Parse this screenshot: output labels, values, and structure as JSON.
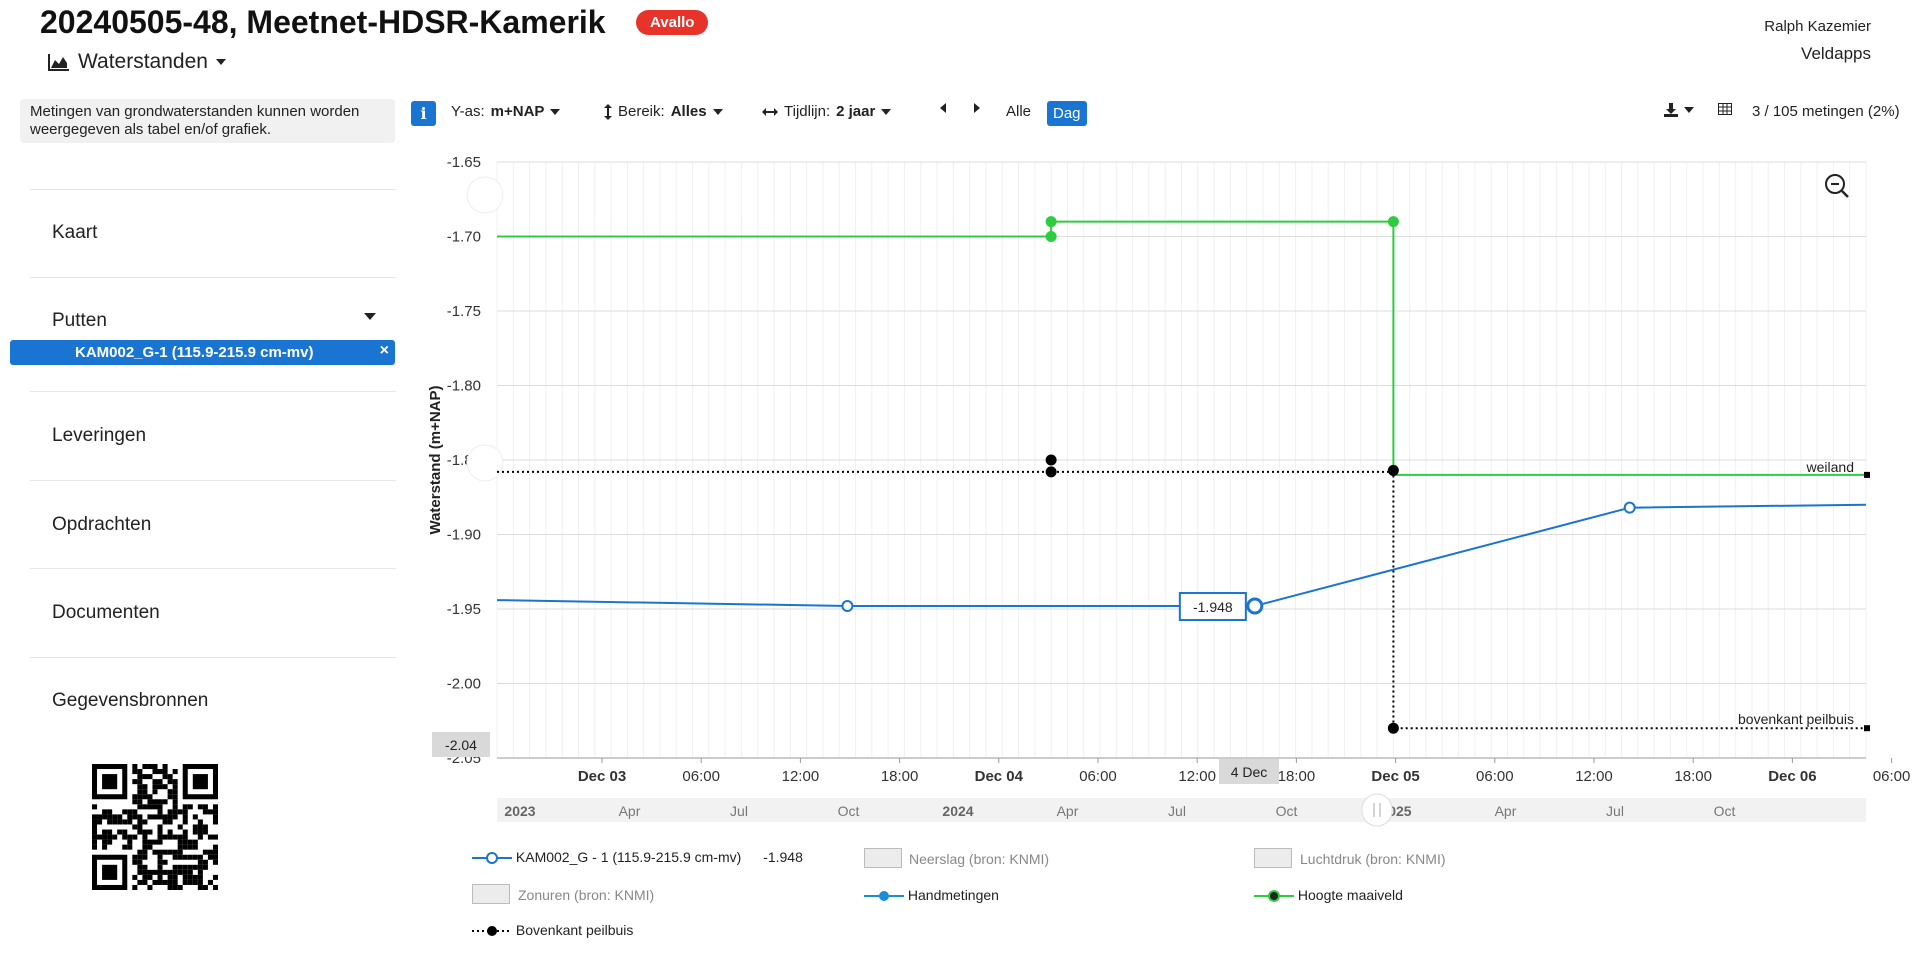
{
  "header": {
    "title": "20240505-48, Meetnet-HDSR-Kamerik",
    "badge": "Avallo",
    "user_name": "Ralph Kazemier",
    "app_name": "Veldapps",
    "section_label": "Waterstanden"
  },
  "sidebar": {
    "info_text": "Metingen van grondwaterstanden kunnen worden weergegeven als tabel en/of grafiek.",
    "items": [
      {
        "label": "Kaart"
      },
      {
        "label": "Putten"
      },
      {
        "label": "Leveringen"
      },
      {
        "label": "Opdrachten"
      },
      {
        "label": "Documenten"
      },
      {
        "label": "Gegevensbronnen"
      }
    ],
    "selected_well": "KAM002_G-1 (115.9-215.9 cm-mv)",
    "selected_well_close": "×"
  },
  "toolbar": {
    "info_icon": "i",
    "yaxis_label": "Y-as:",
    "yaxis_value": "m+NAP",
    "range_label": "Bereik:",
    "range_value": "Alles",
    "timeline_label": "Tijdlijn:",
    "timeline_value": "2 jaar",
    "all_label": "Alle",
    "day_label": "Dag",
    "count_text": "3 / 105 metingen (2%)"
  },
  "icons": {
    "section": "area-chart-icon",
    "range": "vertical-arrows-icon",
    "timeline": "horizontal-arrows-icon",
    "prev": "caret-left-icon",
    "next": "caret-right-icon",
    "download": "download-icon",
    "table": "table-icon",
    "zoom_out": "zoom-out-icon",
    "qr": "qr-code-icon"
  },
  "colors": {
    "accent": "#1a74d2",
    "badge": "#e8332a",
    "series_blue": "#1a74d2",
    "series_green": "#2ecc40",
    "series_black": "#000000"
  },
  "chart_data": {
    "type": "line",
    "ylabel": "Waterstand (m+NAP)",
    "ylim": [
      -2.05,
      -1.65
    ],
    "y_ticks": [
      "-1.65",
      "-1.70",
      "-1.75",
      "-1.80",
      "-1.85",
      "-1.90",
      "-1.95",
      "-2.00",
      "-2.05"
    ],
    "y_crosshair_label": "-2.04",
    "x_tick_labels": [
      "Dec 03",
      "06:00",
      "12:00",
      "18:00",
      "Dec 04",
      "06:00",
      "12:00",
      "18:00",
      "Dec 05",
      "06:00",
      "12:00",
      "18:00",
      "Dec 06",
      "06:00"
    ],
    "x_crosshair_label": "4 Dec",
    "navigator_labels": [
      "2023",
      "Apr",
      "Jul",
      "Oct",
      "2024",
      "Apr",
      "Jul",
      "Oct",
      "2025",
      "Apr",
      "Jul",
      "Oct"
    ],
    "series": [
      {
        "name": "KAM002_G - 1 (115.9-215.9 cm-mv)",
        "style": "line",
        "points": [
          [
            "2024-12-02T18:00",
            -1.944
          ],
          [
            "2024-12-03T15:30",
            -1.948
          ],
          [
            "2024-12-04T16:30",
            -1.948
          ],
          [
            "2024-12-05T15:30",
            -1.882
          ],
          [
            "2024-12-06T06:00",
            -1.88
          ]
        ],
        "markers": [
          [
            "2024-12-03T15:30",
            -1.948
          ],
          [
            "2024-12-05T15:30",
            -1.882
          ]
        ]
      },
      {
        "name": "Hoogte maaiveld",
        "style": "step",
        "points": [
          [
            "2024-12-02T18:00",
            -1.7
          ],
          [
            "2024-12-04T04:00",
            -1.7
          ],
          [
            "2024-12-04T04:00",
            -1.69
          ],
          [
            "2024-12-05T01:00",
            -1.69
          ],
          [
            "2024-12-05T01:00",
            -1.86
          ],
          [
            "2024-12-06T06:00",
            -1.86
          ]
        ],
        "markers": [
          [
            "2024-12-04T04:00",
            -1.7
          ],
          [
            "2024-12-04T04:00",
            -1.69
          ],
          [
            "2024-12-05T01:00",
            -1.69
          ]
        ],
        "end_label": "weiland"
      },
      {
        "name": "Bovenkant peilbuis",
        "style": "dotted-step",
        "points": [
          [
            "2024-12-02T18:00",
            -1.858
          ],
          [
            "2024-12-04T04:00",
            -1.858
          ],
          [
            "2024-12-05T01:00",
            -1.858
          ],
          [
            "2024-12-05T01:00",
            -2.03
          ],
          [
            "2024-12-06T06:00",
            -2.03
          ]
        ],
        "markers": [
          [
            "2024-12-04T04:00",
            -1.85
          ],
          [
            "2024-12-04T04:00",
            -1.858
          ],
          [
            "2024-12-05T01:00",
            -1.857
          ],
          [
            "2024-12-05T01:00",
            -2.03
          ]
        ],
        "end_label": "bovenkant peilbuis"
      }
    ],
    "tooltip": {
      "x": "2024-12-04T16:30",
      "value": "-1.948"
    },
    "legend": [
      {
        "label": "KAM002_G - 1 (115.9-215.9 cm-mv)",
        "value": "-1.948",
        "active": true
      },
      {
        "label": "Neerslag (bron: KNMI)",
        "active": false
      },
      {
        "label": "Luchtdruk (bron: KNMI)",
        "active": false
      },
      {
        "label": "Zonuren (bron: KNMI)",
        "active": false
      },
      {
        "label": "Handmetingen",
        "active": true
      },
      {
        "label": "Hoogte maaiveld",
        "active": true
      },
      {
        "label": "Bovenkant peilbuis",
        "active": true
      }
    ],
    "grid": true
  }
}
